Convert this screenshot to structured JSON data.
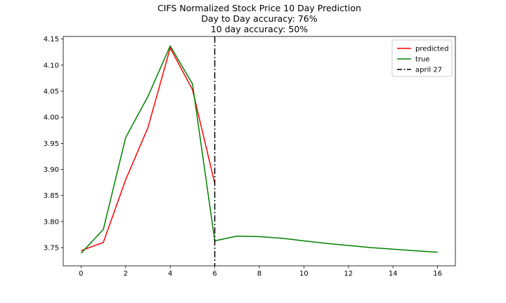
{
  "chart_data": {
    "type": "line",
    "title_lines": [
      "CIFS Normalized Stock Price 10 Day Prediction",
      "Day to Day accuracy: 76%",
      "10 day accuracy: 50%"
    ],
    "xlabel": "",
    "ylabel": "",
    "xlim": [
      -0.8,
      16.8
    ],
    "ylim": [
      3.715,
      4.155
    ],
    "xticks": [
      0,
      2,
      4,
      6,
      8,
      10,
      12,
      14,
      16
    ],
    "yticks": [
      3.75,
      3.8,
      3.85,
      3.9,
      3.95,
      4.0,
      4.05,
      4.1,
      4.15
    ],
    "ytick_labels": [
      "3.75",
      "3.80",
      "3.85",
      "3.90",
      "3.95",
      "4.00",
      "4.05",
      "4.10",
      "4.15"
    ],
    "grid": false,
    "legend_position": "top-right",
    "series": [
      {
        "name": "predicted",
        "color": "#ff0000",
        "style": "solid",
        "x": [
          0,
          1,
          2,
          3,
          4,
          5,
          6
        ],
        "y": [
          3.744,
          3.76,
          3.88,
          3.98,
          4.133,
          4.053,
          3.873
        ]
      },
      {
        "name": "true",
        "color": "#008000",
        "style": "solid",
        "x": [
          0,
          1,
          2,
          3,
          4,
          5,
          6,
          7,
          8,
          9,
          10,
          11,
          12,
          13,
          14,
          15,
          16
        ],
        "y": [
          3.739,
          3.785,
          3.961,
          4.04,
          4.137,
          4.064,
          3.763,
          3.772,
          3.771,
          3.768,
          3.763,
          3.758,
          3.754,
          3.75,
          3.747,
          3.744,
          3.741
        ]
      }
    ],
    "vlines": [
      {
        "name": "april 27",
        "x": 6,
        "color": "#000000",
        "style": "dashdot"
      }
    ]
  }
}
